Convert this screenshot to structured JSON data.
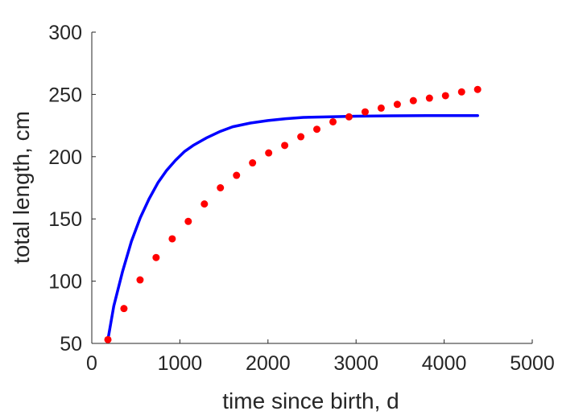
{
  "chart_data": {
    "type": "scatter",
    "xlabel": "time since birth, d",
    "ylabel": "total length, cm",
    "xlim": [
      0,
      5000
    ],
    "ylim": [
      50,
      300
    ],
    "xticks": [
      0,
      1000,
      2000,
      3000,
      4000,
      5000
    ],
    "yticks": [
      50,
      100,
      150,
      200,
      250,
      300
    ],
    "grid": false,
    "box": false,
    "series": [
      {
        "kind": "points",
        "color": "#ff0000",
        "x": [
          183,
          365,
          548,
          730,
          913,
          1095,
          1278,
          1460,
          1643,
          1825,
          2008,
          2190,
          2373,
          2555,
          2738,
          2920,
          3103,
          3285,
          3468,
          3650,
          3833,
          4015,
          4198,
          4380
        ],
        "y": [
          53,
          78,
          101,
          119,
          134,
          148,
          162,
          175,
          185,
          195,
          203,
          209,
          216,
          222,
          228,
          232,
          236,
          239,
          242,
          245,
          247,
          249,
          252,
          254
        ]
      },
      {
        "kind": "line",
        "color": "#0000ff",
        "x": [
          183,
          250,
          350,
          450,
          550,
          650,
          750,
          850,
          950,
          1050,
          1150,
          1300,
          1450,
          1600,
          1800,
          2000,
          2200,
          2400,
          2700,
          3000,
          3400,
          3800,
          4380
        ],
        "y": [
          53,
          80,
          108,
          132,
          151,
          166,
          179,
          189,
          197,
          204,
          209,
          215,
          220,
          224,
          227,
          229,
          230.5,
          231.5,
          232,
          232.5,
          232.8,
          233,
          233
        ]
      }
    ]
  }
}
